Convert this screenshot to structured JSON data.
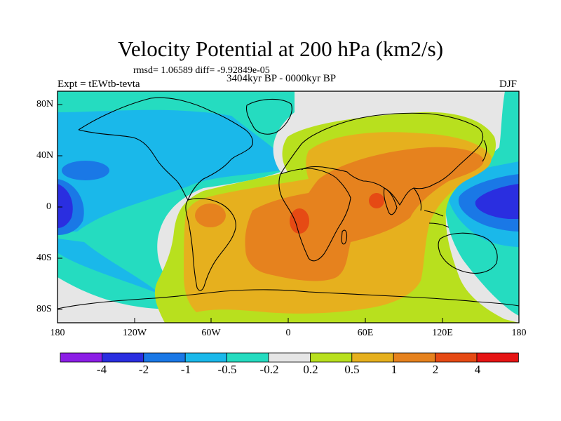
{
  "title": "Velocity Potential at 200 hPa (km2/s)",
  "stats_line": "rmsd= 1.06589 diff= -9.92849e-05",
  "period": "3404kyr BP - 0000kyr BP",
  "experiment": "Expt = tEWtb-tevta",
  "season": "DJF",
  "lon_ticks": [
    "180",
    "120W",
    "60W",
    "0",
    "60E",
    "120E",
    "180"
  ],
  "lat_ticks": [
    "80N",
    "40N",
    "0",
    "40S",
    "80S"
  ],
  "colorbar": {
    "labels": [
      "-4",
      "-2",
      "-1",
      "-0.5",
      "-0.2",
      "0.2",
      "0.5",
      "1",
      "2",
      "4"
    ],
    "colors": [
      "#8c1ee6",
      "#2a2ee0",
      "#1a78e6",
      "#1ab8ea",
      "#25dcc0",
      "#e6e6e6",
      "#b8e01e",
      "#e6b01e",
      "#e6821e",
      "#e64a14",
      "#e61414"
    ]
  }
}
